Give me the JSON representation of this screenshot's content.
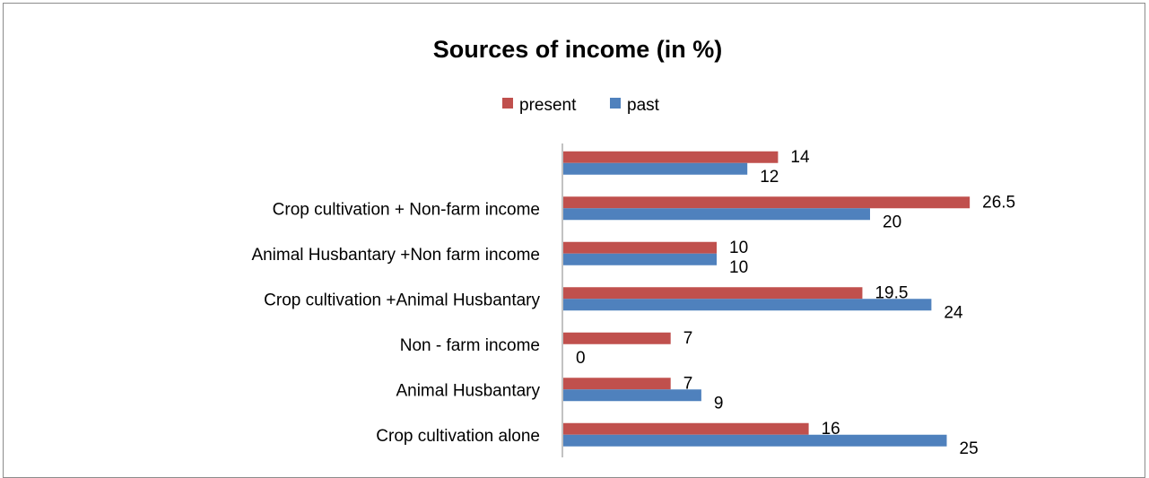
{
  "chart_data": {
    "type": "bar",
    "orientation": "horizontal",
    "title": "Sources of income (in %)",
    "legend_position": "top",
    "categories": [
      "Crop cultivation alone",
      "Animal Husbantary",
      "Non - farm income",
      "Crop cultivation +Animal Husbantary",
      "Animal Husbantary +Non farm income",
      "Crop cultivation + Non-farm income",
      ""
    ],
    "series": [
      {
        "name": "present",
        "color": "#c0504d",
        "values": [
          16,
          7,
          7,
          19.5,
          10,
          26.5,
          14
        ],
        "labels": [
          "16",
          "7",
          "7",
          "19.5",
          "10",
          "26.5",
          "14"
        ]
      },
      {
        "name": "past",
        "color": "#4f81bd",
        "values": [
          25,
          9,
          0,
          24,
          10,
          20,
          12
        ],
        "labels": [
          "25",
          "9",
          "0",
          "24",
          "10",
          "20",
          "12"
        ]
      }
    ],
    "xlim": [
      0,
      30
    ],
    "grid": false
  }
}
